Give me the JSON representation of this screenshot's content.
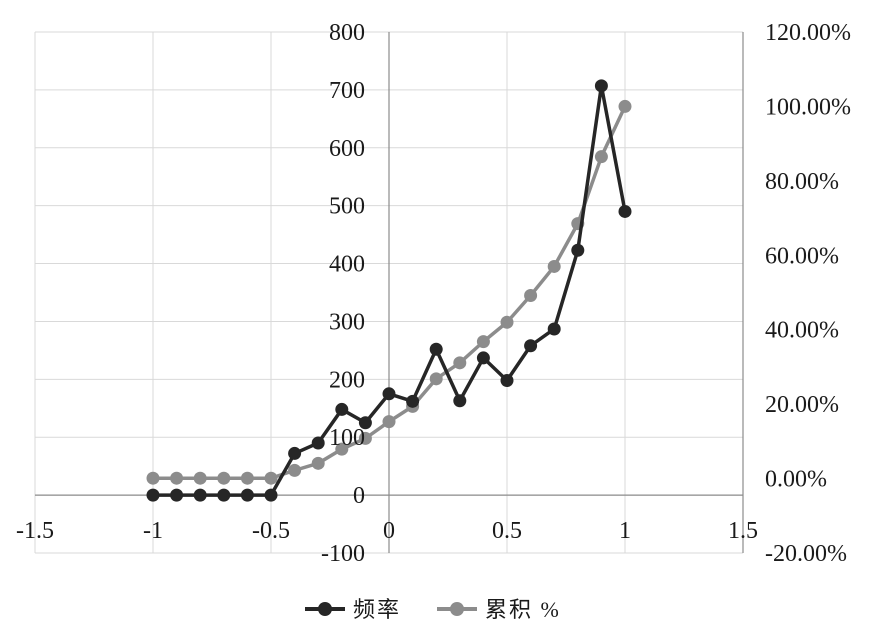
{
  "chart_data": {
    "type": "scatter",
    "lines": true,
    "grid": true,
    "legend_position": "bottom",
    "x_axis": {
      "range": [
        -1.5,
        1.5
      ],
      "ticks": [
        -1.5,
        -1,
        -0.5,
        0,
        0.5,
        1,
        1.5
      ],
      "tick_labels": [
        "-1.5",
        "-1",
        "-0.5",
        "0",
        "0.5",
        "1",
        "1.5"
      ]
    },
    "y_axis_left": {
      "range": [
        -100,
        800
      ],
      "ticks": [
        -100,
        0,
        100,
        200,
        300,
        400,
        500,
        600,
        700,
        800
      ],
      "tick_labels": [
        "-100",
        "0",
        "100",
        "200",
        "300",
        "400",
        "500",
        "600",
        "700",
        "800"
      ]
    },
    "y_axis_right": {
      "range": [
        -20,
        120
      ],
      "ticks": [
        -20,
        0,
        20,
        40,
        60,
        80,
        100,
        120
      ],
      "tick_labels": [
        "-20.00%",
        "0.00%",
        "20.00%",
        "40.00%",
        "60.00%",
        "80.00%",
        "100.00%",
        "120.00%"
      ]
    },
    "x": [
      -1,
      -0.9,
      -0.8,
      -0.7,
      -0.6,
      -0.5,
      -0.4,
      -0.3,
      -0.2,
      -0.1,
      0,
      0.1,
      0.2,
      0.3,
      0.4,
      0.5,
      0.6,
      0.7,
      0.8,
      0.9,
      1
    ],
    "series": [
      {
        "name": "频率",
        "axis": "left",
        "color": "#262626",
        "values": [
          0,
          0,
          0,
          0,
          0,
          0,
          72,
          90,
          148,
          125,
          175,
          162,
          252,
          163,
          237,
          198,
          258,
          287,
          423,
          707,
          490
        ]
      },
      {
        "name": "累积 %",
        "axis": "right",
        "color": "#8c8c8c",
        "values": [
          0.1,
          0.1,
          0.1,
          0.1,
          0.1,
          0.1,
          2.2,
          4.1,
          7.9,
          10.8,
          15.3,
          19.4,
          26.8,
          31.1,
          36.8,
          42.0,
          49.2,
          57.0,
          68.5,
          86.5,
          100.0
        ]
      }
    ]
  }
}
